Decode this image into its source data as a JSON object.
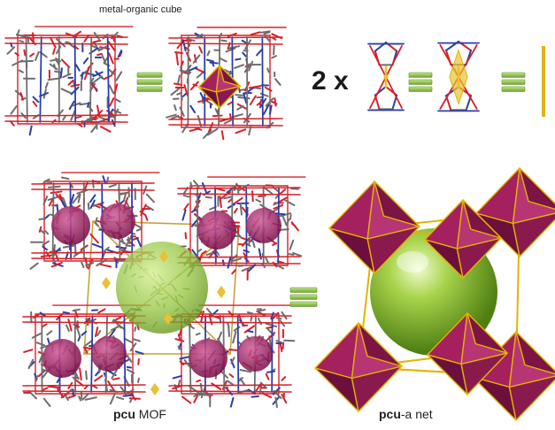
{
  "labels": {
    "title": "metal-organic cube",
    "multiplier": "2 x",
    "pcu_mof_bold": "pcu",
    "pcu_mof_rest": " MOF",
    "pcu_net_bold": "pcu",
    "pcu_net_rest": "-a net"
  },
  "colors": {
    "oxygen": "#d8202a",
    "nitrogen": "#2a3fa8",
    "carbon": "#6e6e6e",
    "metal": "#e8c232",
    "polyhedron": "#a5205f",
    "polyhedron_dark": "#6d0f3c",
    "sphere": "#8ec23a",
    "equiv": "#8cc63f",
    "net_edge": "#e2b400"
  }
}
